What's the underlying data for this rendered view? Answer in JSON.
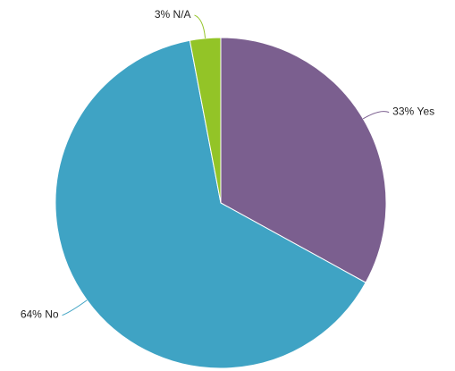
{
  "chart_data": {
    "type": "pie",
    "categories": [
      "Yes",
      "No",
      "N/A"
    ],
    "values": [
      33,
      64,
      3
    ],
    "value_labels": [
      "33%",
      "64%",
      "3%"
    ],
    "colors": [
      "#7b5f8f",
      "#3fa3c4",
      "#93c427"
    ]
  }
}
